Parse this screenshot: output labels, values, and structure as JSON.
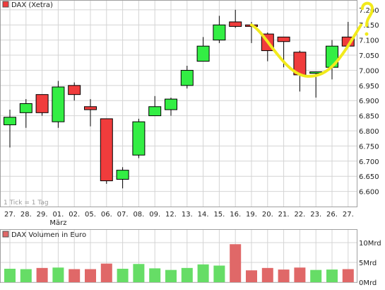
{
  "colors": {
    "up": "#33ee44",
    "down": "#f03c3c",
    "volume": "#e06868",
    "volume_up": "#66dd66",
    "grid": "#d4d4d4",
    "annotation": "#f2ea1c"
  },
  "price_panel": {
    "legend_label": "DAX (Xetra)",
    "footnote": "1 Tick = 1 Tag",
    "month_label": "März",
    "month_label_index": 3
  },
  "volume_panel": {
    "legend_label": "DAX Volumen in Euro"
  },
  "chart_data": [
    {
      "type": "candlestick",
      "title": "DAX (Xetra)",
      "categories": [
        "27.",
        "28.",
        "29.",
        "01.",
        "02.",
        "05.",
        "06.",
        "07.",
        "08.",
        "09.",
        "12.",
        "13.",
        "14.",
        "15.",
        "16.",
        "19.",
        "20.",
        "21.",
        "22.",
        "23.",
        "26.",
        "27."
      ],
      "open": [
        6820,
        6860,
        6920,
        6830,
        6950,
        6880,
        6840,
        6640,
        6720,
        6850,
        6870,
        6950,
        7030,
        7100,
        7160,
        7150,
        7120,
        7110,
        7060,
        6990,
        7010,
        7110
      ],
      "high": [
        6870,
        6905,
        6920,
        6965,
        6960,
        6905,
        6840,
        6680,
        6840,
        6915,
        6910,
        7015,
        7110,
        7180,
        7200,
        7160,
        7125,
        7110,
        7065,
        6990,
        7100,
        7160
      ],
      "low": [
        6745,
        6810,
        6850,
        6810,
        6900,
        6815,
        6625,
        6610,
        6710,
        6850,
        6850,
        6940,
        7030,
        7090,
        7140,
        7090,
        7030,
        7010,
        6930,
        6910,
        6970,
        7080
      ],
      "close": [
        6845,
        6890,
        6860,
        6945,
        6920,
        6870,
        6635,
        6670,
        6830,
        6880,
        6905,
        7000,
        7080,
        7150,
        7145,
        7145,
        7065,
        7095,
        6985,
        6995,
        7080,
        7080
      ],
      "ylim": [
        6550,
        7230
      ],
      "yticks": [
        "6.600",
        "6.650",
        "6.700",
        "6.750",
        "6.800",
        "6.850",
        "6.900",
        "6.950",
        "7.000",
        "7.050",
        "7.100",
        "7.150",
        "7.200"
      ],
      "ytick_values": [
        6600,
        6650,
        6700,
        6750,
        6800,
        6850,
        6900,
        6950,
        7000,
        7050,
        7100,
        7150,
        7200
      ],
      "grid": true,
      "legend_position": "top-left"
    },
    {
      "type": "bar",
      "title": "DAX Volumen in Euro",
      "categories": [
        "27.",
        "28.",
        "29.",
        "01.",
        "02.",
        "05.",
        "06.",
        "07.",
        "08.",
        "09.",
        "12.",
        "13.",
        "14.",
        "15.",
        "16.",
        "19.",
        "20.",
        "21.",
        "22.",
        "23.",
        "26.",
        "27."
      ],
      "values": [
        3.4,
        3.3,
        3.6,
        3.7,
        3.3,
        3.3,
        4.7,
        3.4,
        4.6,
        3.5,
        3.1,
        3.6,
        4.5,
        4.2,
        9.6,
        3.0,
        3.6,
        3.2,
        3.7,
        3.1,
        3.2,
        3.3
      ],
      "direction": [
        "up",
        "up",
        "down",
        "up",
        "down",
        "down",
        "down",
        "up",
        "up",
        "up",
        "up",
        "up",
        "up",
        "up",
        "down",
        "down",
        "down",
        "down",
        "down",
        "up",
        "up",
        "down"
      ],
      "unit": "Mrd",
      "ylim": [
        0,
        10
      ],
      "yticks": [
        "0Mrd",
        "5Mrd",
        "10Mrd"
      ],
      "ytick_values": [
        0,
        5,
        10
      ],
      "grid": true,
      "legend_position": "top-left"
    }
  ],
  "annotation": {
    "shape": "freehand-curve-with-question-mark",
    "text": "?"
  }
}
